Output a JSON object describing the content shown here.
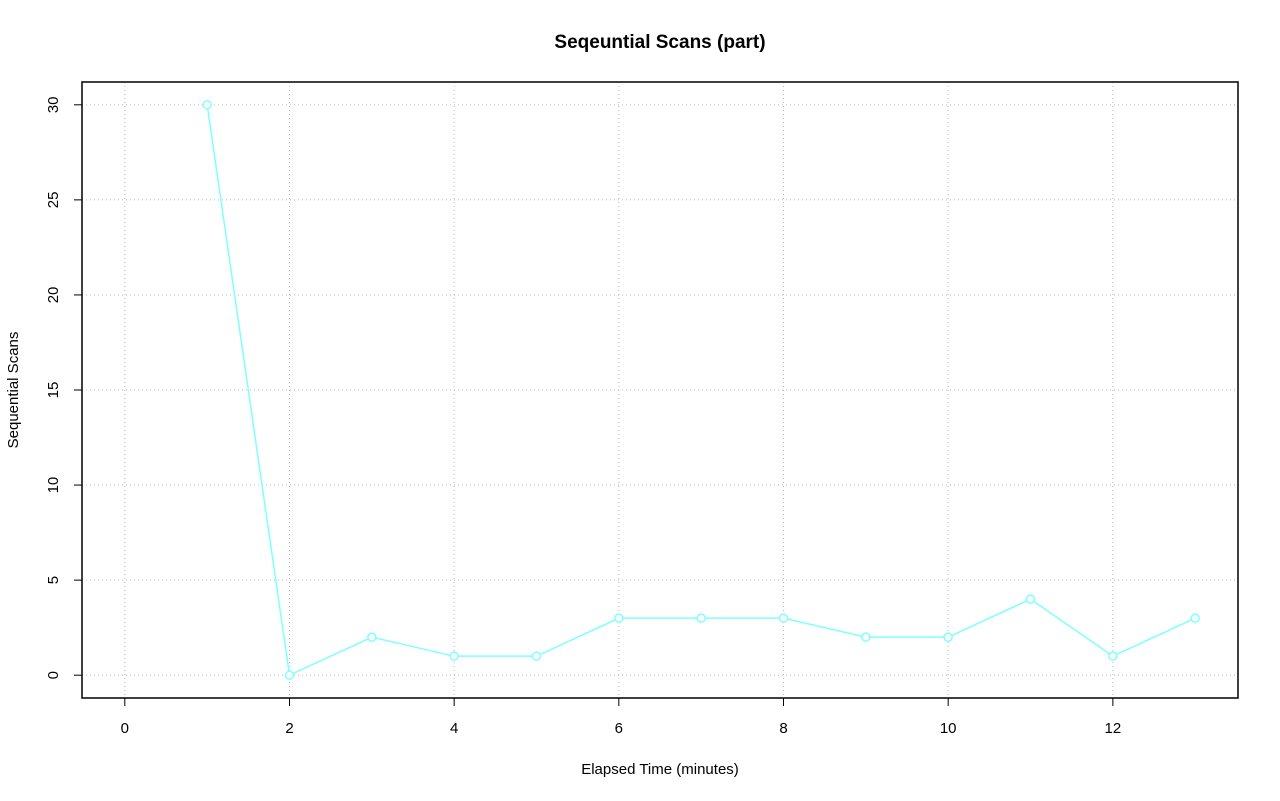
{
  "chart_data": {
    "type": "line",
    "title": "Seqeuntial Scans (part)",
    "x_label": "Elapsed Time (minutes)",
    "y_label": "Sequential Scans",
    "x": [
      1,
      2,
      3,
      4,
      5,
      6,
      7,
      8,
      9,
      10,
      11,
      12,
      13
    ],
    "series": [
      {
        "color": "#80ffff",
        "values": [
          30,
          0,
          2,
          1,
          1,
          3,
          3,
          3,
          2,
          2,
          4,
          1,
          3
        ]
      }
    ],
    "xlim": [
      -0.52,
      13.52
    ],
    "xticks": [
      0,
      2,
      4,
      6,
      8,
      10,
      12
    ],
    "ylim": [
      -1.2,
      31.2
    ],
    "yticks": [
      0,
      5,
      10,
      15,
      20,
      25,
      30
    ],
    "grid": true,
    "markers": true
  }
}
